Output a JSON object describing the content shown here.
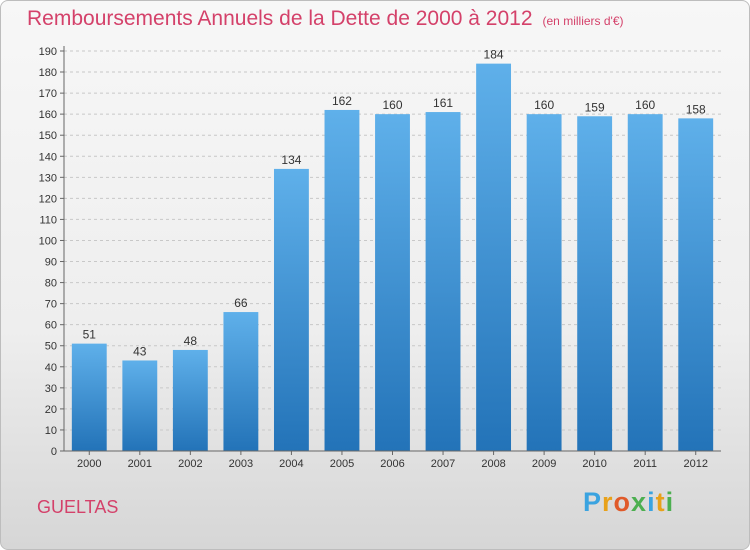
{
  "title": "Remboursements Annuels de la Dette de 2000 à 2012",
  "unit": "(en milliers d'€)",
  "commune": "GUELTAS",
  "logo": {
    "letters": [
      "P",
      "r",
      "o",
      "x",
      "i",
      "t",
      "i"
    ],
    "colors": [
      "#3aa3e0",
      "#e8a11a",
      "#e05a2a",
      "#4caf50",
      "#3aa3e0",
      "#e8a11a",
      "#4caf50"
    ]
  },
  "colors": {
    "accent": "#d4416a",
    "bar_top": "#5fb0ea",
    "bar_bottom": "#2373b8"
  },
  "chart_data": {
    "type": "bar",
    "categories": [
      "2000",
      "2001",
      "2002",
      "2003",
      "2004",
      "2005",
      "2006",
      "2007",
      "2008",
      "2009",
      "2010",
      "2011",
      "2012"
    ],
    "values": [
      51,
      43,
      48,
      66,
      134,
      162,
      160,
      161,
      184,
      160,
      159,
      160,
      158
    ],
    "ylim": [
      0,
      190
    ],
    "ytick_step": 10,
    "grid": true,
    "title": "Remboursements Annuels de la Dette de 2000 à 2012",
    "xlabel": "",
    "ylabel": ""
  }
}
